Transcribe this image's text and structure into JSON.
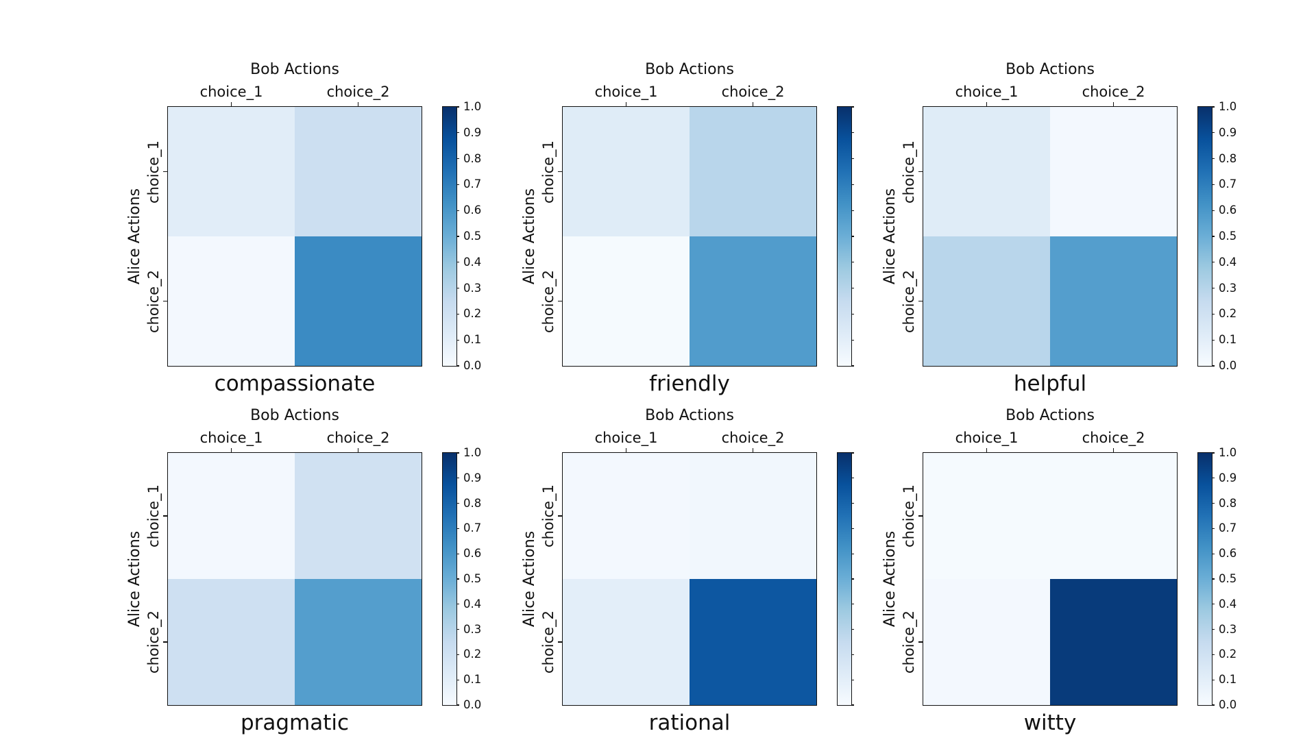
{
  "figure": {
    "x_axis_title": "Bob Actions",
    "y_axis_title": "Alice Actions",
    "x_tick_labels": [
      "choice_1",
      "choice_2"
    ],
    "y_tick_labels": [
      "choice_1",
      "choice_2"
    ],
    "colormap": {
      "name": "Blues",
      "anchors": [
        {
          "t": 0.0,
          "color": "#f7fbff"
        },
        {
          "t": 0.125,
          "color": "#deebf7"
        },
        {
          "t": 0.25,
          "color": "#c6dbef"
        },
        {
          "t": 0.375,
          "color": "#9ecae1"
        },
        {
          "t": 0.5,
          "color": "#6baed6"
        },
        {
          "t": 0.625,
          "color": "#4292c6"
        },
        {
          "t": 0.75,
          "color": "#2171b5"
        },
        {
          "t": 0.875,
          "color": "#08519c"
        },
        {
          "t": 1.0,
          "color": "#08306b"
        }
      ]
    },
    "colorbar": {
      "min": 0.0,
      "max": 1.0,
      "tick_labels_top_to_bottom": [
        "1.0",
        "0.9",
        "0.8",
        "0.7",
        "0.6",
        "0.5",
        "0.4",
        "0.3",
        "0.2",
        "0.1",
        "0.0"
      ]
    },
    "background_color": "#ffffff",
    "axis_edge_color": "#111111"
  },
  "chart_data": [
    {
      "type": "heatmap",
      "title": "compassionate",
      "x_label": "Bob Actions",
      "y_label": "Alice Actions",
      "x_categories": [
        "choice_1",
        "choice_2"
      ],
      "y_categories": [
        "choice_1",
        "choice_2"
      ],
      "rows": [
        [
          0.11,
          0.22
        ],
        [
          0.02,
          0.65
        ]
      ],
      "value_range": [
        0.0,
        1.0
      ],
      "colorbar_tick_labels_visible": true
    },
    {
      "type": "heatmap",
      "title": "friendly",
      "x_label": "Bob Actions",
      "y_label": "Alice Actions",
      "x_categories": [
        "choice_1",
        "choice_2"
      ],
      "y_categories": [
        "choice_1",
        "choice_2"
      ],
      "rows": [
        [
          0.12,
          0.29
        ],
        [
          0.01,
          0.58
        ]
      ],
      "value_range": [
        0.0,
        1.0
      ],
      "colorbar_tick_labels_visible": false
    },
    {
      "type": "heatmap",
      "title": "helpful",
      "x_label": "Bob Actions",
      "y_label": "Alice Actions",
      "x_categories": [
        "choice_1",
        "choice_2"
      ],
      "y_categories": [
        "choice_1",
        "choice_2"
      ],
      "rows": [
        [
          0.12,
          0.02
        ],
        [
          0.29,
          0.57
        ]
      ],
      "value_range": [
        0.0,
        1.0
      ],
      "colorbar_tick_labels_visible": true
    },
    {
      "type": "heatmap",
      "title": "pragmatic",
      "x_label": "Bob Actions",
      "y_label": "Alice Actions",
      "x_categories": [
        "choice_1",
        "choice_2"
      ],
      "y_categories": [
        "choice_1",
        "choice_2"
      ],
      "rows": [
        [
          0.02,
          0.2
        ],
        [
          0.21,
          0.57
        ]
      ],
      "value_range": [
        0.0,
        1.0
      ],
      "colorbar_tick_labels_visible": true
    },
    {
      "type": "heatmap",
      "title": "rational",
      "x_label": "Bob Actions",
      "y_label": "Alice Actions",
      "x_categories": [
        "choice_1",
        "choice_2"
      ],
      "y_categories": [
        "choice_1",
        "choice_2"
      ],
      "rows": [
        [
          0.02,
          0.03
        ],
        [
          0.1,
          0.85
        ]
      ],
      "value_range": [
        0.0,
        1.0
      ],
      "colorbar_tick_labels_visible": false
    },
    {
      "type": "heatmap",
      "title": "witty",
      "x_label": "Bob Actions",
      "y_label": "Alice Actions",
      "x_categories": [
        "choice_1",
        "choice_2"
      ],
      "y_categories": [
        "choice_1",
        "choice_2"
      ],
      "rows": [
        [
          0.01,
          0.01
        ],
        [
          0.02,
          0.96
        ]
      ],
      "value_range": [
        0.0,
        1.0
      ],
      "colorbar_tick_labels_visible": true
    }
  ]
}
